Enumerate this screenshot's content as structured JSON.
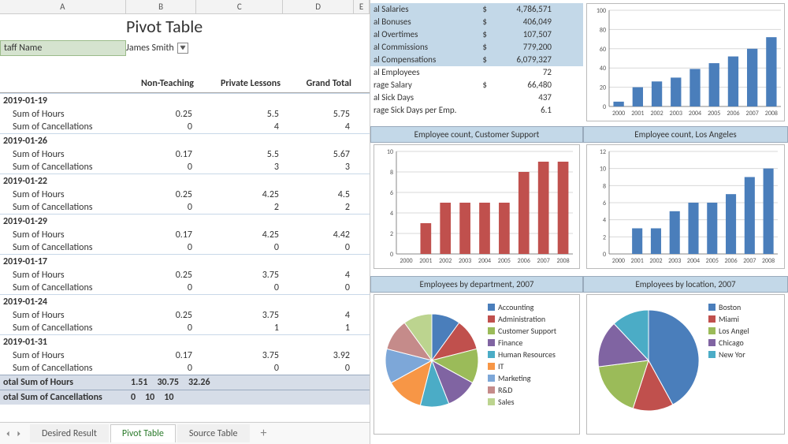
{
  "columns": [
    "A",
    "B",
    "C",
    "D",
    "E"
  ],
  "pivot_title": "Pivot Table",
  "filter": {
    "label": "taff Name",
    "value": "James Smith"
  },
  "headers": {
    "b": "Non-Teaching",
    "c": "Private Lessons",
    "d": "Grand Total"
  },
  "groups": [
    {
      "date": "2019-01-19",
      "rows": [
        {
          "label": "Sum of Hours",
          "b": "0.25",
          "c": "5.5",
          "d": "5.75"
        },
        {
          "label": "Sum of Cancellations",
          "b": "0",
          "c": "4",
          "d": "4"
        }
      ]
    },
    {
      "date": "2019-01-26",
      "rows": [
        {
          "label": "Sum of Hours",
          "b": "0.17",
          "c": "5.5",
          "d": "5.67"
        },
        {
          "label": "Sum of Cancellations",
          "b": "0",
          "c": "3",
          "d": "3"
        }
      ]
    },
    {
      "date": "2019-01-22",
      "rows": [
        {
          "label": "Sum of Hours",
          "b": "0.25",
          "c": "4.25",
          "d": "4.5"
        },
        {
          "label": "Sum of Cancellations",
          "b": "0",
          "c": "2",
          "d": "2"
        }
      ]
    },
    {
      "date": "2019-01-29",
      "rows": [
        {
          "label": "Sum of Hours",
          "b": "0.17",
          "c": "4.25",
          "d": "4.42"
        },
        {
          "label": "Sum of Cancellations",
          "b": "0",
          "c": "0",
          "d": "0"
        }
      ]
    },
    {
      "date": "2019-01-17",
      "rows": [
        {
          "label": "Sum of Hours",
          "b": "0.25",
          "c": "3.75",
          "d": "4"
        },
        {
          "label": "Sum of Cancellations",
          "b": "0",
          "c": "0",
          "d": "0"
        }
      ]
    },
    {
      "date": "2019-01-24",
      "rows": [
        {
          "label": "Sum of Hours",
          "b": "0.25",
          "c": "3.75",
          "d": "4"
        },
        {
          "label": "Sum of Cancellations",
          "b": "0",
          "c": "1",
          "d": "1"
        }
      ]
    },
    {
      "date": "2019-01-31",
      "rows": [
        {
          "label": "Sum of Hours",
          "b": "0.17",
          "c": "3.75",
          "d": "3.92"
        },
        {
          "label": "Sum of Cancellations",
          "b": "0",
          "c": "0",
          "d": "0"
        }
      ]
    }
  ],
  "totals": [
    {
      "label": "otal Sum of Hours",
      "b": "1.51",
      "c": "30.75",
      "d": "32.26"
    },
    {
      "label": "otal Sum of Cancellations",
      "b": "0",
      "c": "10",
      "d": "10"
    }
  ],
  "tabs": {
    "items": [
      "Desired Result",
      "Pivot Table",
      "Source Table"
    ],
    "active_index": 1
  },
  "stats": {
    "highlight_upto": 5,
    "rows": [
      {
        "label": "al Salaries",
        "cur": "$",
        "val": "4,786,571"
      },
      {
        "label": "al Bonuses",
        "cur": "$",
        "val": "406,049"
      },
      {
        "label": "al Overtimes",
        "cur": "$",
        "val": "107,507"
      },
      {
        "label": "al Commissions",
        "cur": "$",
        "val": "779,200"
      },
      {
        "label": "al Compensations",
        "cur": "$",
        "val": "6,079,327"
      },
      {
        "label": "al Employees",
        "cur": "",
        "val": "72"
      },
      {
        "label": "rage Salary",
        "cur": "$",
        "val": "66,480"
      },
      {
        "label": "al Sick Days",
        "cur": "",
        "val": "437"
      },
      {
        "label": "rage Sick Days per Emp.",
        "cur": "",
        "val": "6.1"
      }
    ]
  },
  "chart_top_right": {
    "type": "bar",
    "categories": [
      "2000",
      "2001",
      "2002",
      "2003",
      "2004",
      "2005",
      "2006",
      "2007",
      "2008"
    ],
    "values": [
      5,
      20,
      26,
      30,
      39,
      45,
      52,
      60,
      72
    ],
    "ylim": [
      0,
      100
    ],
    "ytick_step": 20,
    "bar_color": "#4a7ebb",
    "grid_color": "#d8d8d8",
    "axis_color": "#888",
    "label_fontsize": 8
  },
  "chart_mid_left": {
    "title": "Employee count, Customer Support",
    "type": "bar",
    "categories": [
      "2000",
      "2001",
      "2002",
      "2003",
      "2004",
      "2005",
      "2006",
      "2007",
      "2008"
    ],
    "values": [
      0,
      3,
      5,
      5,
      5,
      5,
      8,
      9,
      9
    ],
    "ylim": [
      0,
      10
    ],
    "bar_color": "#c0504d",
    "grid_color": "#d8d8d8",
    "axis_color": "#888",
    "label_fontsize": 8
  },
  "chart_mid_right": {
    "title": "Employee count, Los Angeles",
    "type": "bar",
    "categories": [
      "2000",
      "2001",
      "2002",
      "2003",
      "2004",
      "2005",
      "2006",
      "2007",
      "2008"
    ],
    "values": [
      0,
      3,
      3,
      5,
      6,
      6,
      7,
      9,
      10
    ],
    "ylim": [
      0,
      12
    ],
    "ytick_step": 2,
    "bar_color": "#4a7ebb",
    "grid_color": "#d8d8d8",
    "axis_color": "#888",
    "label_fontsize": 8
  },
  "pie_left": {
    "title": "Employees by department, 2007",
    "type": "pie",
    "legend": [
      "Accounting",
      "Administration",
      "Customer Support",
      "Finance",
      "Human Resources",
      "IT",
      "Marketing",
      "R&D",
      "Sales"
    ],
    "values": [
      10,
      11,
      12,
      11,
      10,
      13,
      12,
      11,
      10
    ],
    "colors": [
      "#4a7ebb",
      "#c0504d",
      "#9bbb59",
      "#8064a2",
      "#4bacc6",
      "#f79646",
      "#7da7d8",
      "#c58b8a",
      "#bcd48f"
    ]
  },
  "pie_right": {
    "title": "Employees by location, 2007",
    "type": "pie",
    "legend": [
      "Boston",
      "Miami",
      "Los Angel",
      "Chicago",
      "New Yor"
    ],
    "values": [
      42,
      13,
      18,
      15,
      12
    ],
    "colors": [
      "#4a7ebb",
      "#c0504d",
      "#9bbb59",
      "#8064a2",
      "#4bacc6"
    ]
  }
}
